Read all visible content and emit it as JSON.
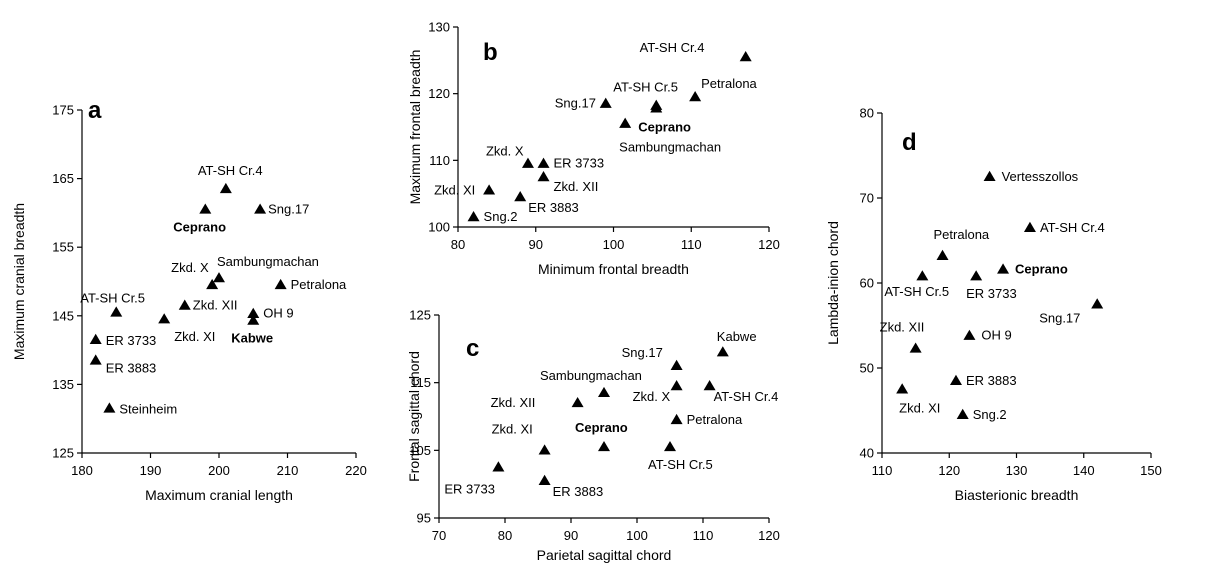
{
  "chart_data": [
    {
      "type": "scatter",
      "panel": "a",
      "xlabel": "Maximum cranial length",
      "ylabel": "Maximum cranial  breadth",
      "xlim": [
        180,
        220
      ],
      "ylim": [
        125,
        175
      ],
      "xticks": [
        "180",
        "190",
        "200",
        "210",
        "220"
      ],
      "yticks": [
        "125",
        "135",
        "145",
        "155",
        "165",
        "175"
      ],
      "points": [
        {
          "label": "AT-SH Cr.4",
          "x": 201,
          "y": 163.5,
          "bold": false
        },
        {
          "label": "Ceprano",
          "x": 198,
          "y": 160.5,
          "bold": true
        },
        {
          "label": "Sng.17",
          "x": 206,
          "y": 160.5,
          "bold": false
        },
        {
          "label": "Sambungmachan",
          "x": 200,
          "y": 150.5,
          "bold": false
        },
        {
          "label": "Zkd. X",
          "x": 199,
          "y": 149.5,
          "bold": false
        },
        {
          "label": "Petralona",
          "x": 209,
          "y": 149.5,
          "bold": false
        },
        {
          "label": "Zkd. XII",
          "x": 195,
          "y": 146.5,
          "bold": false
        },
        {
          "label": "AT-SH Cr.5",
          "x": 185,
          "y": 145.5,
          "bold": false
        },
        {
          "label": "OH 9",
          "x": 205,
          "y": 145.3,
          "bold": false
        },
        {
          "label": "Zkd. XI",
          "x": 192,
          "y": 144.5,
          "bold": false
        },
        {
          "label": "Kabwe",
          "x": 205,
          "y": 144.3,
          "bold": true
        },
        {
          "label": "ER 3733",
          "x": 182,
          "y": 141.5,
          "bold": false
        },
        {
          "label": "ER 3883",
          "x": 182,
          "y": 138.5,
          "bold": false
        },
        {
          "label": "Steinheim",
          "x": 184,
          "y": 131.5,
          "bold": false
        }
      ]
    },
    {
      "type": "scatter",
      "panel": "b",
      "xlabel": "Minimum frontal breadth",
      "ylabel": "Maximum frontal breadth",
      "xlim": [
        80,
        120
      ],
      "ylim": [
        100,
        130
      ],
      "xticks": [
        "80",
        "90",
        "100",
        "110",
        "120"
      ],
      "yticks": [
        "100",
        "110",
        "120",
        "130"
      ],
      "points": [
        {
          "label": "AT-SH Cr.4",
          "x": 117,
          "y": 125.5,
          "bold": false
        },
        {
          "label": "Petralona",
          "x": 110.5,
          "y": 119.5,
          "bold": false
        },
        {
          "label": "AT-SH Cr.5",
          "x": 105.5,
          "y": 118.2,
          "bold": false
        },
        {
          "label": "Sng.17",
          "x": 99,
          "y": 118.5,
          "bold": false
        },
        {
          "label": "Ceprano",
          "x": 105.5,
          "y": 117.8,
          "bold": true
        },
        {
          "label": "Sambungmachan",
          "x": 101.5,
          "y": 115.5,
          "bold": false
        },
        {
          "label": "Zkd. X",
          "x": 89,
          "y": 109.5,
          "bold": false
        },
        {
          "label": "ER 3733",
          "x": 91,
          "y": 109.5,
          "bold": false
        },
        {
          "label": "Zkd. XII",
          "x": 91,
          "y": 107.5,
          "bold": false
        },
        {
          "label": "Zkd. XI",
          "x": 84,
          "y": 105.5,
          "bold": false
        },
        {
          "label": "ER 3883",
          "x": 88,
          "y": 104.5,
          "bold": false
        },
        {
          "label": "Sng.2",
          "x": 82,
          "y": 101.5,
          "bold": false
        }
      ]
    },
    {
      "type": "scatter",
      "panel": "c",
      "xlabel": "Parietal sagittal chord",
      "ylabel": "Frontal sagittal chord",
      "xlim": [
        70,
        120
      ],
      "ylim": [
        95,
        125
      ],
      "xticks": [
        "70",
        "80",
        "90",
        "100",
        "110",
        "120"
      ],
      "yticks": [
        "95",
        "105",
        "115",
        "125"
      ],
      "points": [
        {
          "label": "Kabwe",
          "x": 113,
          "y": 119.5,
          "bold": false
        },
        {
          "label": "Sng.17",
          "x": 106,
          "y": 117.5,
          "bold": false
        },
        {
          "label": "Sambungmachan",
          "x": 95,
          "y": 113.5,
          "bold": false
        },
        {
          "label": "Zkd. XII",
          "x": 91,
          "y": 112,
          "bold": false
        },
        {
          "label": "Zkd. X",
          "x": 106,
          "y": 114.5,
          "bold": false
        },
        {
          "label": "AT-SH Cr.4",
          "x": 111,
          "y": 114.5,
          "bold": false
        },
        {
          "label": "Petralona",
          "x": 106,
          "y": 109.5,
          "bold": false
        },
        {
          "label": "Zkd. XI",
          "x": 86,
          "y": 105,
          "bold": false
        },
        {
          "label": "Ceprano",
          "x": 95,
          "y": 105.5,
          "bold": true
        },
        {
          "label": "AT-SH Cr.5",
          "x": 105,
          "y": 105.5,
          "bold": false
        },
        {
          "label": "ER 3733",
          "x": 79,
          "y": 102.5,
          "bold": false
        },
        {
          "label": "ER 3883",
          "x": 86,
          "y": 100.5,
          "bold": false
        }
      ]
    },
    {
      "type": "scatter",
      "panel": "d",
      "xlabel": "Biasterionic breadth",
      "ylabel": "Lambda-inion chord",
      "xlim": [
        110,
        150
      ],
      "ylim": [
        40,
        80
      ],
      "xticks": [
        "110",
        "120",
        "130",
        "140",
        "150"
      ],
      "yticks": [
        "40",
        "50",
        "60",
        "70",
        "80"
      ],
      "points": [
        {
          "label": "Vertesszollos",
          "x": 126,
          "y": 72.5,
          "bold": false
        },
        {
          "label": "AT-SH Cr.4",
          "x": 132,
          "y": 66.5,
          "bold": false
        },
        {
          "label": "Petralona",
          "x": 119,
          "y": 63.2,
          "bold": false
        },
        {
          "label": "Ceprano",
          "x": 128,
          "y": 61.6,
          "bold": true
        },
        {
          "label": "AT-SH Cr.5",
          "x": 116,
          "y": 60.8,
          "bold": false
        },
        {
          "label": "ER 3733",
          "x": 124,
          "y": 60.8,
          "bold": false
        },
        {
          "label": "Sng.17",
          "x": 142,
          "y": 57.5,
          "bold": false
        },
        {
          "label": "OH 9",
          "x": 123,
          "y": 53.8,
          "bold": false
        },
        {
          "label": "Zkd. XII",
          "x": 115,
          "y": 52.3,
          "bold": false
        },
        {
          "label": "ER 3883",
          "x": 121,
          "y": 48.5,
          "bold": false
        },
        {
          "label": "Zkd. XI",
          "x": 113,
          "y": 47.5,
          "bold": false
        },
        {
          "label": "Sng.2",
          "x": 122,
          "y": 44.5,
          "bold": false
        }
      ]
    }
  ]
}
